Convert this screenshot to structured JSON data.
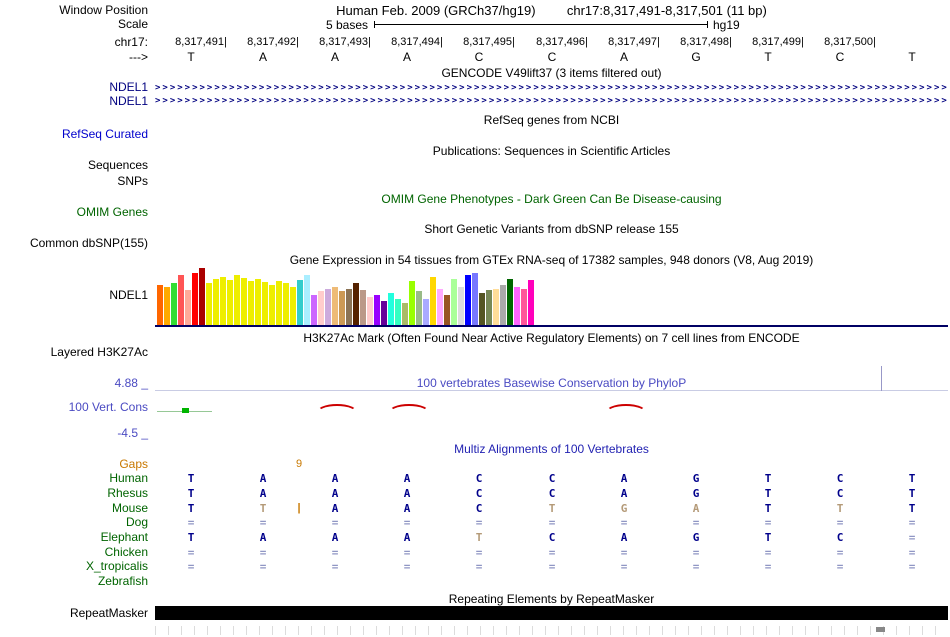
{
  "header": {
    "window_position_label": "Window Position",
    "assembly": "Human Feb. 2009 (GRCh37/hg19)",
    "position": "chr17:8,317,491-8,317,501 (11 bp)"
  },
  "scale": {
    "label": "Scale",
    "bar_text": "5 bases",
    "genome": "hg19"
  },
  "ruler": {
    "chrom_label": "chr17:",
    "strand_label": "--->",
    "coordinates": [
      "8,317,491",
      "8,317,492",
      "8,317,493",
      "8,317,494",
      "8,317,495",
      "8,317,496",
      "8,317,497",
      "8,317,498",
      "8,317,499",
      "8,317,500"
    ],
    "bases": [
      "T",
      "A",
      "A",
      "A",
      "C",
      "C",
      "A",
      "G",
      "T",
      "C",
      "T"
    ]
  },
  "tracks": {
    "gencode": {
      "title": "GENCODE V49lift37 (3 items filtered out)",
      "gene_labels": [
        "NDEL1",
        "NDEL1"
      ],
      "arrow_glyph": ">"
    },
    "refseq": {
      "title": "RefSeq genes from NCBI",
      "label": "RefSeq Curated"
    },
    "publications": {
      "title": "Publications: Sequences in Scientific Articles",
      "label": "Sequences"
    },
    "snps": {
      "label": "SNPs"
    },
    "omim": {
      "title": "OMIM Gene Phenotypes - Dark Green Can Be Disease-causing",
      "label": "OMIM Genes"
    },
    "dbsnp": {
      "title": "Short Genetic Variants from dbSNP release 155",
      "label": "Common dbSNP(155)"
    },
    "gtex": {
      "title": "Gene Expression in 54 tissues from GTEx RNA-seq of 17382 samples, 948 donors (V8, Aug 2019)",
      "label": "NDEL1"
    },
    "h3k27ac": {
      "title": "H3K27Ac Mark (Often Found Near Active Regulatory Elements) on 7 cell lines from ENCODE",
      "label": "Layered H3K27Ac"
    },
    "phylop": {
      "title": "100 vertebrates Basewise Conservation by PhyloP",
      "label": "100 Vert. Cons",
      "max_label": "4.88 _",
      "min_label": "-4.5 _"
    },
    "multiz": {
      "title": "Multiz Alignments of 100 Vertebrates",
      "gaps_label": "Gaps",
      "gap_count": "9"
    },
    "repeatmasker": {
      "title": "Repeating Elements by RepeatMasker",
      "label": "RepeatMasker"
    }
  },
  "chart_data": {
    "type": "bar",
    "title": "Gene Expression in 54 tissues from GTEx RNA-seq of 17382 samples, 948 donors (V8, Aug 2019)",
    "gene": "NDEL1",
    "note": "54 GTEx tissue bars; values are approximate relative expression bar heights in px read from the image; colors follow the GTEx tissue palette order",
    "colors": [
      "#FF6600",
      "#FFAA00",
      "#33DD33",
      "#FF5555",
      "#FFAA99",
      "#FF0000",
      "#AA0000",
      "#EEEE00",
      "#EEEE00",
      "#EEEE00",
      "#EEEE00",
      "#EEEE00",
      "#EEEE00",
      "#EEEE00",
      "#EEEE00",
      "#EEEE00",
      "#EEEE00",
      "#EEEE00",
      "#EEEE00",
      "#EEEE00",
      "#33CCCC",
      "#AAEEFF",
      "#CC66FF",
      "#FFCCCC",
      "#CCAADD",
      "#EEBB77",
      "#CC9955",
      "#8B7355",
      "#552200",
      "#BB9988",
      "#FFCCCC",
      "#9900FF",
      "#660099",
      "#22FFDD",
      "#33FFC2",
      "#AABB66",
      "#99FF00",
      "#99BB88",
      "#AAAAFF",
      "#FFD700",
      "#FFAAFF",
      "#995522",
      "#AAFF99",
      "#DDDDDD",
      "#0000FF",
      "#7777FF",
      "#555522",
      "#778855",
      "#FFDD99",
      "#AAAAAA",
      "#006600",
      "#FF66FF",
      "#FF5599",
      "#FF00BB"
    ],
    "values": [
      40,
      38,
      42,
      50,
      35,
      52,
      57,
      42,
      46,
      48,
      45,
      50,
      47,
      44,
      46,
      43,
      40,
      44,
      42,
      38,
      45,
      50,
      30,
      34,
      36,
      38,
      34,
      36,
      42,
      35,
      28,
      30,
      24,
      32,
      26,
      22,
      44,
      34,
      26,
      48,
      36,
      30,
      46,
      38,
      50,
      52,
      32,
      35,
      36,
      40,
      46,
      38,
      36,
      45
    ]
  },
  "conservation": {
    "green_tick_column": 0,
    "red_arc_columns": [
      2,
      3,
      6
    ]
  },
  "alignment": {
    "insertion": {
      "species": "Mouse",
      "after_column": 1,
      "glyph": "|"
    },
    "rows": [
      {
        "name": "Human",
        "cells": [
          "T",
          "A",
          "A",
          "A",
          "C",
          "C",
          "A",
          "G",
          "T",
          "C",
          "T"
        ],
        "diff": []
      },
      {
        "name": "Rhesus",
        "cells": [
          "T",
          "A",
          "A",
          "A",
          "C",
          "C",
          "A",
          "G",
          "T",
          "C",
          "T"
        ],
        "diff": []
      },
      {
        "name": "Mouse",
        "cells": [
          "T",
          "T",
          "A",
          "A",
          "C",
          "T",
          "G",
          "A",
          "T",
          "T",
          "T"
        ],
        "diff": [
          1,
          5,
          6,
          7,
          9
        ]
      },
      {
        "name": "Dog",
        "cells": [
          "=",
          "=",
          "=",
          "=",
          "=",
          "=",
          "=",
          "=",
          "=",
          "=",
          "="
        ],
        "diff": []
      },
      {
        "name": "Elephant",
        "cells": [
          "T",
          "A",
          "A",
          "A",
          "T",
          "C",
          "A",
          "G",
          "T",
          "C",
          "="
        ],
        "diff": [
          4
        ]
      },
      {
        "name": "Chicken",
        "cells": [
          "=",
          "=",
          "=",
          "=",
          "=",
          "=",
          "=",
          "=",
          "=",
          "=",
          "="
        ],
        "diff": []
      },
      {
        "name": "X_tropicalis",
        "cells": [
          "=",
          "=",
          "=",
          "=",
          "=",
          "=",
          "=",
          "=",
          "=",
          "=",
          "="
        ],
        "diff": []
      },
      {
        "name": "Zebrafish",
        "cells": [
          "",
          "",
          "",
          "",
          "",
          "",
          "",
          "",
          "",
          "",
          ""
        ],
        "diff": []
      }
    ]
  },
  "colors": {
    "navy": "#000080",
    "letter": "#00008B",
    "diff": "#B49A78",
    "equals": "#9096C4",
    "blue_label": "#0000CC",
    "green": "#006400",
    "species": "#006400",
    "phylop": "#4A4AC2",
    "multiz_title": "#2222B2",
    "orange": "#C87800",
    "red": "#CC0000",
    "baseline": "#000064"
  }
}
